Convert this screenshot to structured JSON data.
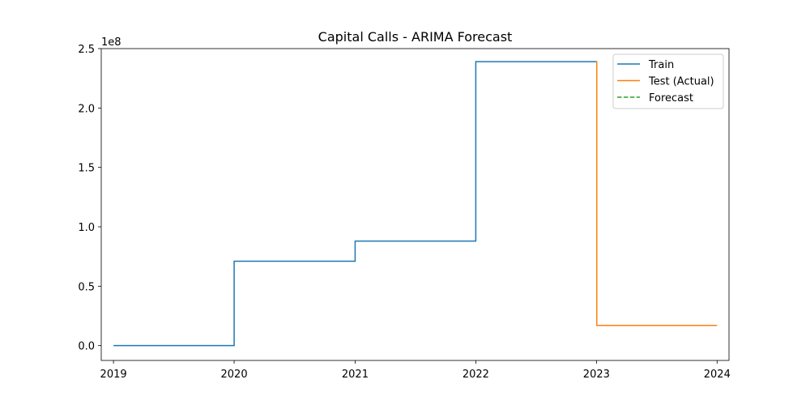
{
  "chart_data": {
    "type": "line",
    "title": "Capital Calls - ARIMA Forecast",
    "xlabel": "",
    "ylabel": "",
    "y_offset_label": "1e8",
    "xlim": [
      "2018-11-25",
      "2024-02-06"
    ],
    "ylim": [
      -0.125,
      2.5
    ],
    "y_scale_factor": 100000000,
    "x_ticks": [
      "2019",
      "2020",
      "2021",
      "2022",
      "2023",
      "2024"
    ],
    "x_tick_dates": [
      "2019-01-01",
      "2020-01-01",
      "2021-01-01",
      "2022-01-01",
      "2023-01-01",
      "2024-01-01"
    ],
    "y_ticks": [
      0.0,
      0.5,
      1.0,
      1.5,
      2.0,
      2.5
    ],
    "y_tick_labels": [
      "0.0",
      "0.5",
      "1.0",
      "1.5",
      "2.0",
      "2.5"
    ],
    "grid": false,
    "legend_position": "top-right",
    "series": [
      {
        "name": "Train",
        "color": "#1f77b4",
        "style": "solid",
        "step": "post",
        "x": [
          "2019-01-01",
          "2020-01-01",
          "2021-01-01",
          "2022-01-01",
          "2023-01-01"
        ],
        "y": [
          0.0,
          0.71,
          0.88,
          2.39,
          2.39
        ]
      },
      {
        "name": "Test (Actual)",
        "color": "#ff7f0e",
        "style": "solid",
        "step": "post",
        "x": [
          "2023-01-01",
          "2023-01-02",
          "2024-01-01"
        ],
        "y": [
          2.39,
          0.17,
          0.17
        ]
      },
      {
        "name": "Forecast",
        "color": "#2ca02c",
        "style": "dashed",
        "step": "post",
        "x": [],
        "y": []
      }
    ]
  }
}
